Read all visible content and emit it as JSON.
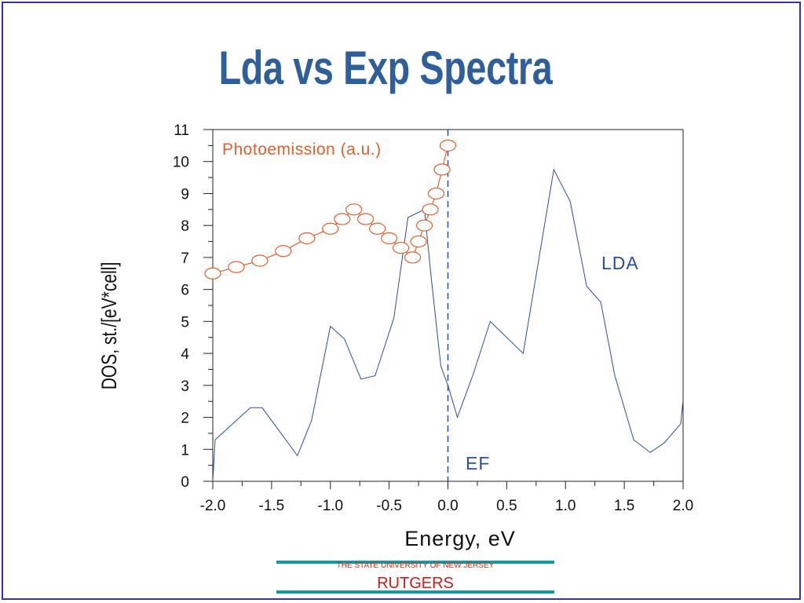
{
  "slide": {
    "title": "Lda vs Exp Spectra",
    "footer": {
      "subtitle": "THE STATE UNIVERSITY OF NEW JERSEY",
      "name": "RUTGERS"
    }
  },
  "chart_data": {
    "type": "line",
    "xlabel": "Energy, eV",
    "ylabel": "DOS, st./[eV*cell]",
    "xlim": [
      -2.0,
      2.0
    ],
    "ylim": [
      0,
      11
    ],
    "xticks": [
      "-2.0",
      "-1.5",
      "-1.0",
      "-0.5",
      "0.0",
      "0.5",
      "1.0",
      "1.5",
      "2.0"
    ],
    "yticks": [
      "0",
      "1",
      "2",
      "3",
      "4",
      "5",
      "6",
      "7",
      "8",
      "9",
      "10",
      "11"
    ],
    "fermi_level": {
      "x": 0.0,
      "label": "EF",
      "style": "dashed"
    },
    "series": [
      {
        "name": "LDA",
        "color": "#2b4f9a",
        "marker": "none",
        "x": [
          -2.0,
          -1.98,
          -1.8,
          -1.68,
          -1.58,
          -1.42,
          -1.28,
          -1.16,
          -1.0,
          -0.88,
          -0.74,
          -0.62,
          -0.46,
          -0.34,
          -0.2,
          -0.14,
          -0.06,
          0.0,
          0.08,
          0.22,
          0.36,
          0.64,
          0.9,
          1.04,
          1.18,
          1.3,
          1.42,
          1.58,
          1.72,
          1.84,
          1.98,
          2.0
        ],
        "y": [
          0.0,
          1.3,
          1.9,
          2.3,
          2.3,
          1.5,
          0.8,
          1.9,
          4.85,
          4.45,
          3.2,
          3.3,
          5.1,
          8.25,
          8.5,
          6.3,
          3.6,
          3.0,
          2.0,
          3.4,
          5.0,
          4.0,
          9.75,
          8.75,
          6.1,
          5.6,
          3.3,
          1.3,
          0.9,
          1.2,
          1.8,
          2.55
        ]
      },
      {
        "name": "Photoemission (a.u.)",
        "color": "#e06030",
        "marker": "open-circle",
        "x": [
          -2.0,
          -1.8,
          -1.6,
          -1.4,
          -1.2,
          -1.0,
          -0.9,
          -0.8,
          -0.7,
          -0.6,
          -0.5,
          -0.4,
          -0.3,
          -0.25,
          -0.2,
          -0.15,
          -0.1,
          -0.05,
          0.0
        ],
        "y": [
          6.5,
          6.7,
          6.9,
          7.2,
          7.6,
          7.9,
          8.2,
          8.5,
          8.2,
          7.9,
          7.6,
          7.3,
          7.0,
          7.5,
          8.0,
          8.5,
          9.0,
          9.75,
          10.5
        ]
      }
    ],
    "annotations": [
      {
        "text": "Photoemission (a.u.)",
        "color": "#e06030"
      },
      {
        "text": "LDA",
        "color": "#2b4f9a"
      },
      {
        "text": "EF",
        "color": "#2b4f9a"
      }
    ]
  }
}
